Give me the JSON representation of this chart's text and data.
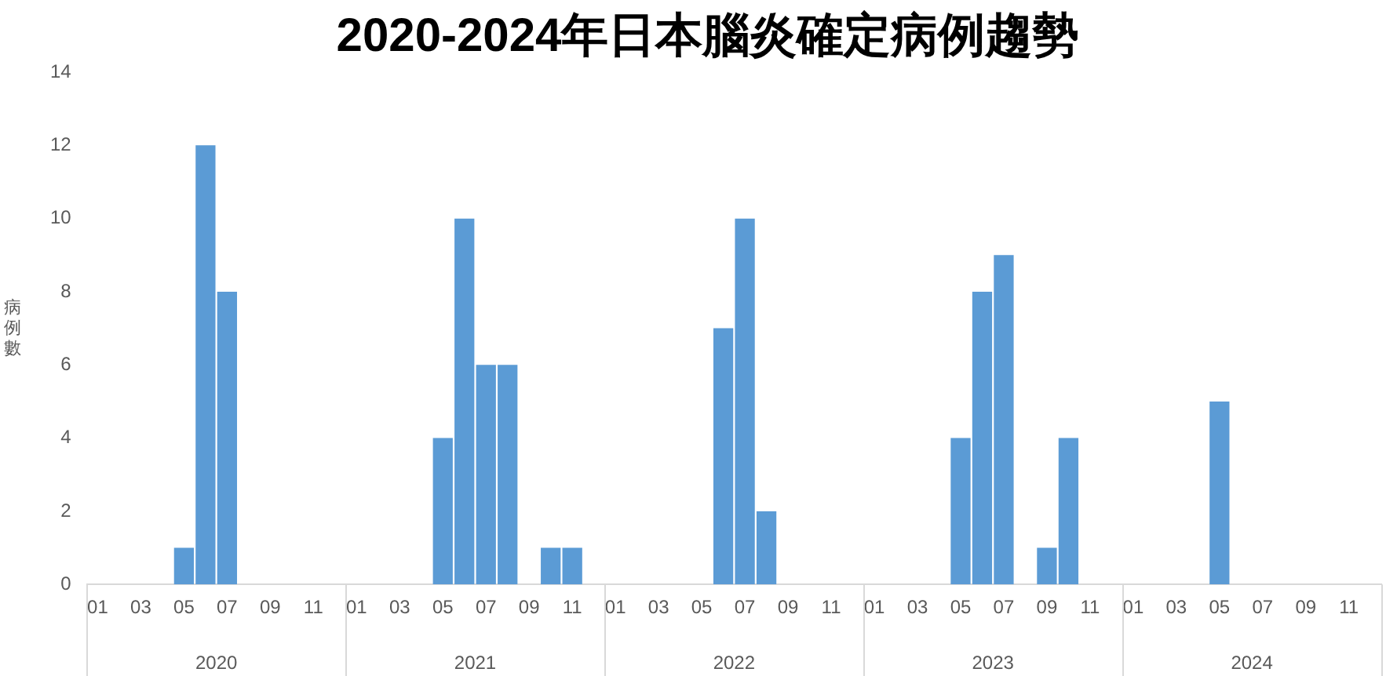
{
  "chart_data": {
    "type": "bar",
    "title": "2020-2024年日本腦炎確定病例趨勢",
    "ylabel": "病例數",
    "categories": [
      "01",
      null,
      "03",
      null,
      "05",
      null,
      "07",
      null,
      "09",
      null,
      "11",
      null,
      "01",
      null,
      "03",
      null,
      "05",
      null,
      "07",
      null,
      "09",
      null,
      "11",
      null,
      "01",
      null,
      "03",
      null,
      "05",
      null,
      "07",
      null,
      "09",
      null,
      "11",
      null,
      "01",
      null,
      "03",
      null,
      "05",
      null,
      "07",
      null,
      "09",
      null,
      "11",
      null,
      "01",
      null,
      "03",
      null,
      "05",
      null,
      "07",
      null,
      "09",
      null,
      "11",
      null
    ],
    "values": [
      0,
      0,
      0,
      0,
      1,
      12,
      8,
      0,
      0,
      0,
      0,
      0,
      0,
      0,
      0,
      0,
      4,
      10,
      6,
      6,
      0,
      1,
      1,
      0,
      0,
      0,
      0,
      0,
      0,
      7,
      10,
      2,
      0,
      0,
      0,
      0,
      0,
      0,
      0,
      0,
      4,
      8,
      9,
      0,
      1,
      4,
      0,
      0,
      0,
      0,
      0,
      0,
      5,
      0,
      0,
      0,
      0,
      0,
      0,
      0
    ],
    "color": "#5b9bd5",
    "ylim": [
      0,
      14
    ],
    "yticks": [
      0,
      2,
      4,
      6,
      8,
      10,
      12,
      14
    ],
    "grid": false,
    "legend": false,
    "annotations": [
      "2020",
      "2021",
      "2022",
      "2023",
      "2024"
    ]
  }
}
